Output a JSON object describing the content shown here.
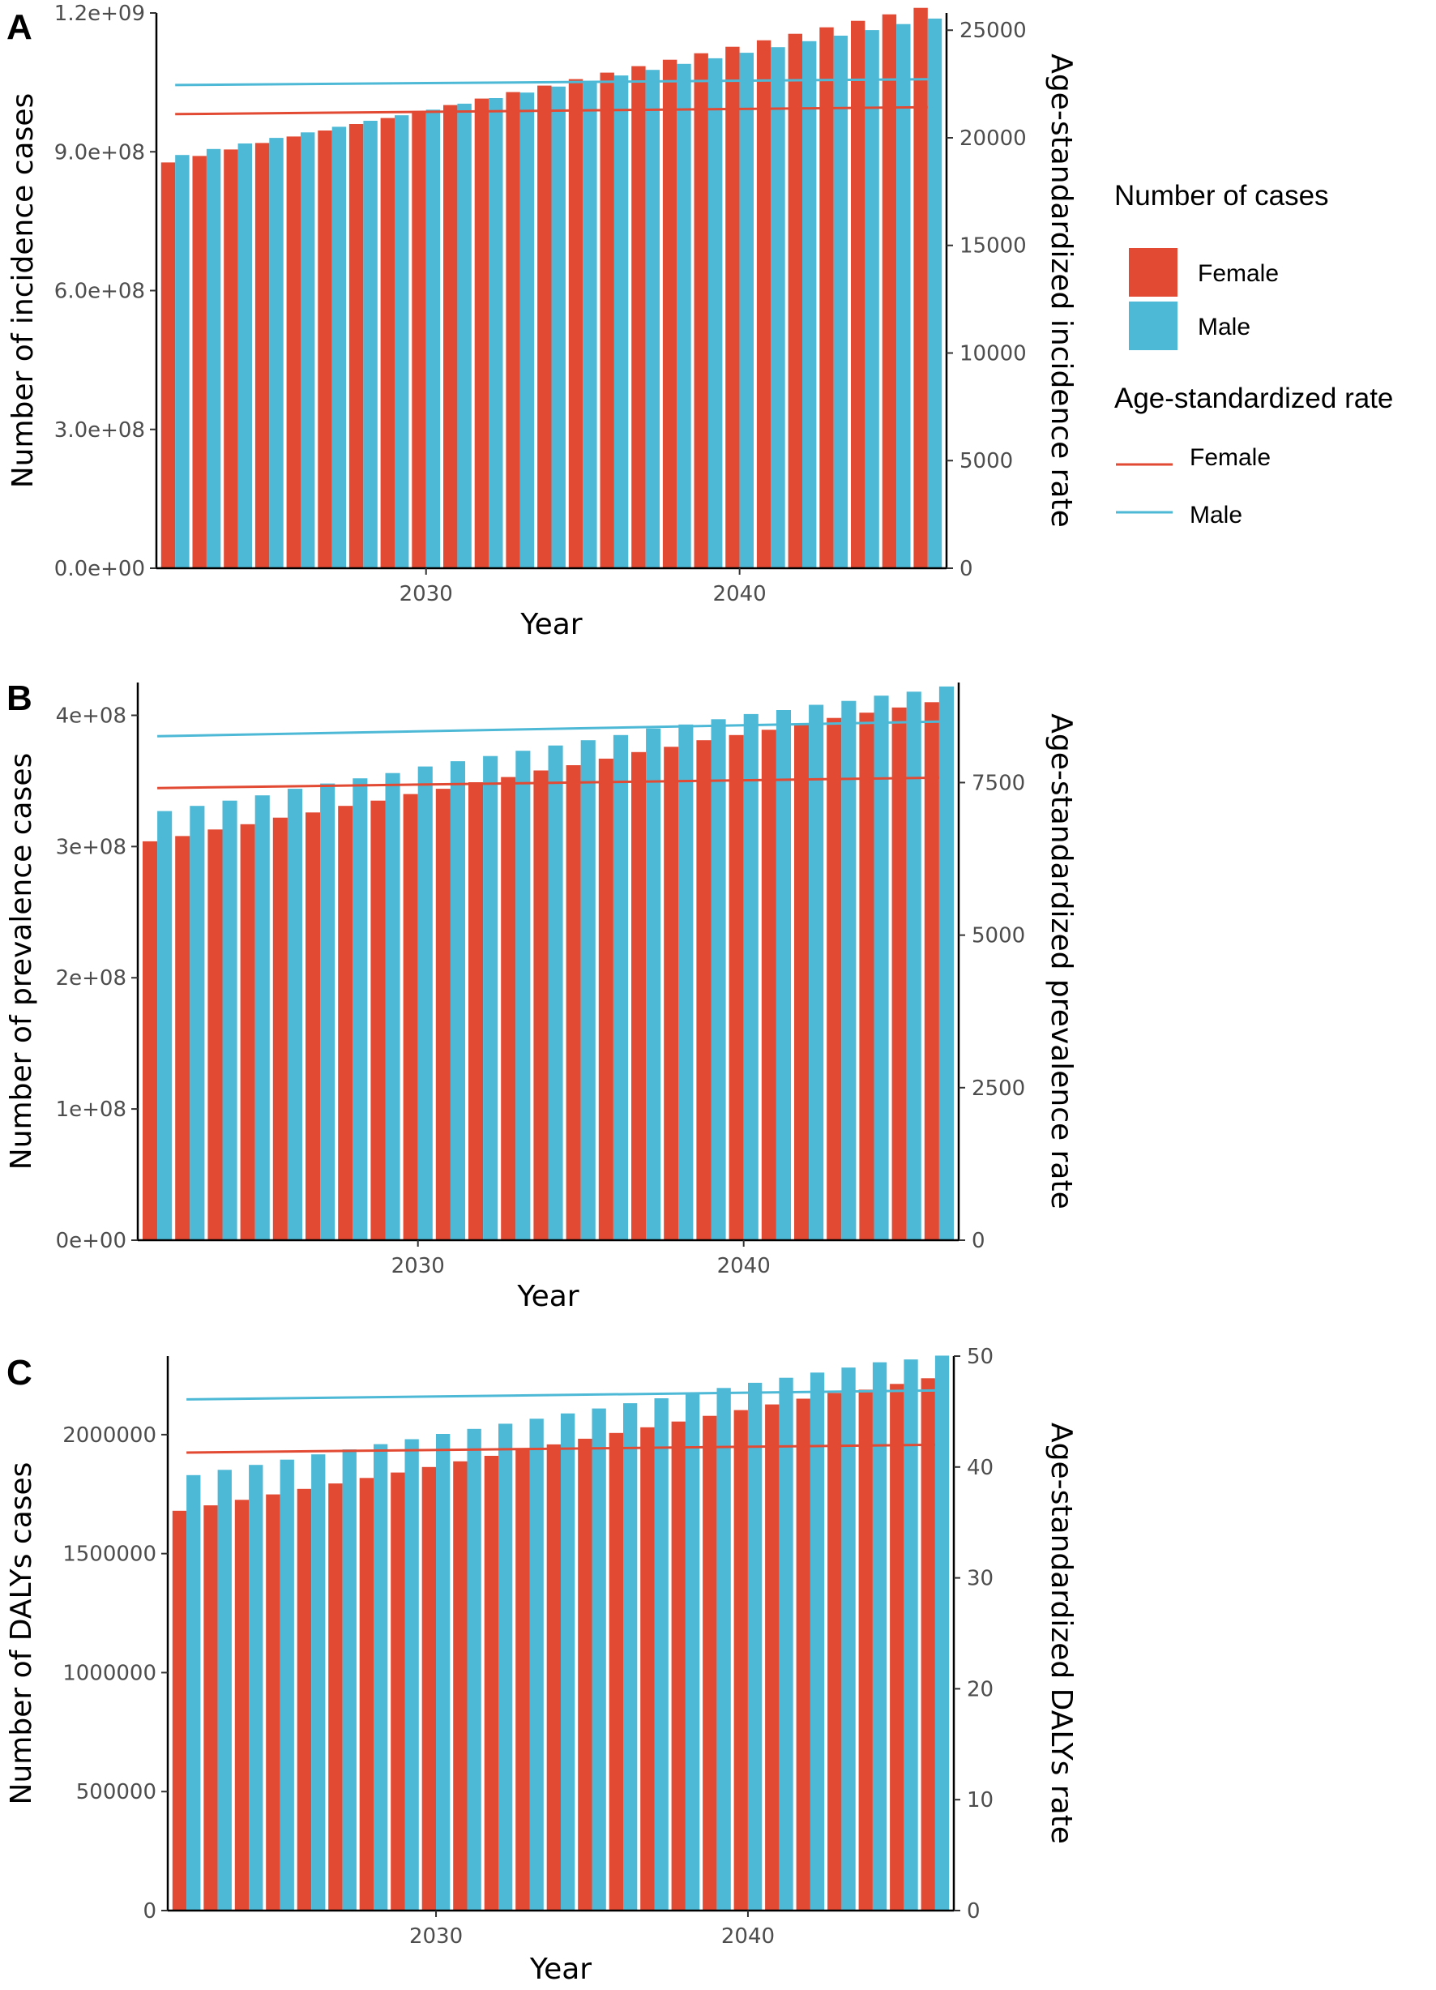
{
  "colors": {
    "female": "#E24A33",
    "male": "#4EB9D6",
    "axis": "#000000",
    "tick_text": "#4d4d4d"
  },
  "legend": {
    "cases_title": "Number of cases",
    "rate_title": "Age-standardized rate",
    "female_label": "Female",
    "male_label": "Male"
  },
  "chart_data": [
    {
      "type": "bar",
      "panel": "A",
      "xlabel": "Year",
      "ylabel": "Number of incidence cases",
      "y2label": "Age-standardized incidence rate",
      "x_ticks": [
        "2030",
        "2040"
      ],
      "x_tick_values": [
        2030,
        2040
      ],
      "ylim": [
        0,
        1200000000
      ],
      "y_ticks": [
        0,
        300000000,
        600000000,
        900000000,
        1200000000
      ],
      "y_tick_labels": [
        "0.0e+00",
        "3.0e+08",
        "6.0e+08",
        "9.0e+08",
        "1.2e+09"
      ],
      "y2lim": [
        0,
        25800
      ],
      "y2_ticks": [
        0,
        5000,
        10000,
        15000,
        20000,
        25000
      ],
      "y2_tick_labels": [
        "0",
        "5000",
        "10000",
        "15000",
        "20000",
        "25000"
      ],
      "years": [
        2022,
        2023,
        2024,
        2025,
        2026,
        2027,
        2028,
        2029,
        2030,
        2031,
        2032,
        2033,
        2034,
        2035,
        2036,
        2037,
        2038,
        2039,
        2040,
        2041,
        2042,
        2043,
        2044,
        2045,
        2046
      ],
      "series": [
        {
          "name": "Female",
          "kind": "bar",
          "values": [
            877000000,
            891000000,
            905000000,
            919000000,
            933000000,
            946000000,
            960000000,
            973000000,
            987000000,
            1001000000,
            1015000000,
            1029000000,
            1043000000,
            1057000000,
            1071000000,
            1085000000,
            1099000000,
            1113000000,
            1127000000,
            1141000000,
            1155000000,
            1169000000,
            1183000000,
            1197000000,
            1211000000
          ]
        },
        {
          "name": "Male",
          "kind": "bar",
          "values": [
            893000000,
            906000000,
            918000000,
            930000000,
            942000000,
            954000000,
            967000000,
            979000000,
            991000000,
            1004000000,
            1016000000,
            1028000000,
            1041000000,
            1053000000,
            1065000000,
            1077000000,
            1090000000,
            1102000000,
            1114000000,
            1126000000,
            1139000000,
            1151000000,
            1163000000,
            1176000000,
            1188000000
          ]
        },
        {
          "name": "Female",
          "kind": "line",
          "x_range": [
            2022,
            2046
          ],
          "values": [
            21100,
            21420
          ]
        },
        {
          "name": "Male",
          "kind": "line",
          "x_range": [
            2022,
            2046
          ],
          "values": [
            22450,
            22720
          ]
        }
      ]
    },
    {
      "type": "bar",
      "panel": "B",
      "xlabel": "Year",
      "ylabel": "Number of prevalence cases",
      "y2label": "Age-standardized prevalence rate",
      "x_ticks": [
        "2030",
        "2040"
      ],
      "x_tick_values": [
        2030,
        2040
      ],
      "ylim": [
        0,
        425000000
      ],
      "y_ticks": [
        0,
        100000000,
        200000000,
        300000000,
        400000000
      ],
      "y_tick_labels": [
        "0e+00",
        "1e+08",
        "2e+08",
        "3e+08",
        "4e+08"
      ],
      "y2lim": [
        0,
        9140
      ],
      "y2_ticks": [
        0,
        2500,
        5000,
        7500
      ],
      "y2_tick_labels": [
        "0",
        "2500",
        "5000",
        "7500"
      ],
      "years": [
        2022,
        2023,
        2024,
        2025,
        2026,
        2027,
        2028,
        2029,
        2030,
        2031,
        2032,
        2033,
        2034,
        2035,
        2036,
        2037,
        2038,
        2039,
        2040,
        2041,
        2042,
        2043,
        2044,
        2045,
        2046
      ],
      "series": [
        {
          "name": "Female",
          "kind": "bar",
          "values": [
            304000000,
            308000000,
            313000000,
            317000000,
            322000000,
            326000000,
            331000000,
            335000000,
            340000000,
            344000000,
            349000000,
            353000000,
            358000000,
            362000000,
            367000000,
            372000000,
            376000000,
            381000000,
            385000000,
            389000000,
            393000000,
            398000000,
            402000000,
            406000000,
            410000000
          ]
        },
        {
          "name": "Male",
          "kind": "bar",
          "values": [
            327000000,
            331000000,
            335000000,
            339000000,
            344000000,
            348000000,
            352000000,
            356000000,
            361000000,
            365000000,
            369000000,
            373000000,
            377000000,
            381000000,
            385000000,
            390000000,
            393000000,
            397000000,
            401000000,
            404000000,
            408000000,
            411000000,
            415000000,
            418000000,
            422000000
          ]
        },
        {
          "name": "Female",
          "kind": "line",
          "x_range": [
            2022,
            2046
          ],
          "values": [
            7410,
            7580
          ]
        },
        {
          "name": "Male",
          "kind": "line",
          "x_range": [
            2022,
            2046
          ],
          "values": [
            8260,
            8500
          ]
        }
      ]
    },
    {
      "type": "bar",
      "panel": "C",
      "xlabel": "Year",
      "ylabel": "Number of DALYs cases",
      "y2label": "Age-standardized DALYs rate",
      "x_ticks": [
        "2030",
        "2040"
      ],
      "x_tick_values": [
        2030,
        2040
      ],
      "ylim": [
        0,
        2330000
      ],
      "y_ticks": [
        0,
        500000,
        1000000,
        1500000,
        2000000
      ],
      "y_tick_labels": [
        "0",
        "500000",
        "1000000",
        "1500000",
        "2000000"
      ],
      "y2lim": [
        0,
        50
      ],
      "y2_ticks": [
        0,
        10,
        20,
        30,
        40,
        50
      ],
      "y2_tick_labels": [
        "0",
        "10",
        "20",
        "30",
        "40",
        "50"
      ],
      "years": [
        2022,
        2023,
        2024,
        2025,
        2026,
        2027,
        2028,
        2029,
        2030,
        2031,
        2032,
        2033,
        2034,
        2035,
        2036,
        2037,
        2038,
        2039,
        2040,
        2041,
        2042,
        2043,
        2044,
        2045,
        2046
      ],
      "series": [
        {
          "name": "Female",
          "kind": "bar",
          "values": [
            1680000,
            1703000,
            1726000,
            1749000,
            1772000,
            1795000,
            1818000,
            1841000,
            1864000,
            1888000,
            1911000,
            1935000,
            1959000,
            1983000,
            2007000,
            2031000,
            2055000,
            2079000,
            2103000,
            2127000,
            2151000,
            2175000,
            2189000,
            2213000,
            2237000
          ]
        },
        {
          "name": "Male",
          "kind": "bar",
          "values": [
            1830000,
            1852000,
            1873000,
            1895000,
            1917000,
            1938000,
            1960000,
            1981000,
            2003000,
            2024000,
            2046000,
            2067000,
            2089000,
            2110000,
            2132000,
            2153000,
            2175000,
            2196000,
            2218000,
            2239000,
            2261000,
            2282000,
            2304000,
            2316000,
            2332000
          ]
        },
        {
          "name": "Female",
          "kind": "line",
          "x_range": [
            2022,
            2046
          ],
          "values": [
            41.3,
            42.0
          ]
        },
        {
          "name": "Male",
          "kind": "line",
          "x_range": [
            2022,
            2046
          ],
          "values": [
            46.1,
            46.9
          ]
        }
      ]
    }
  ]
}
